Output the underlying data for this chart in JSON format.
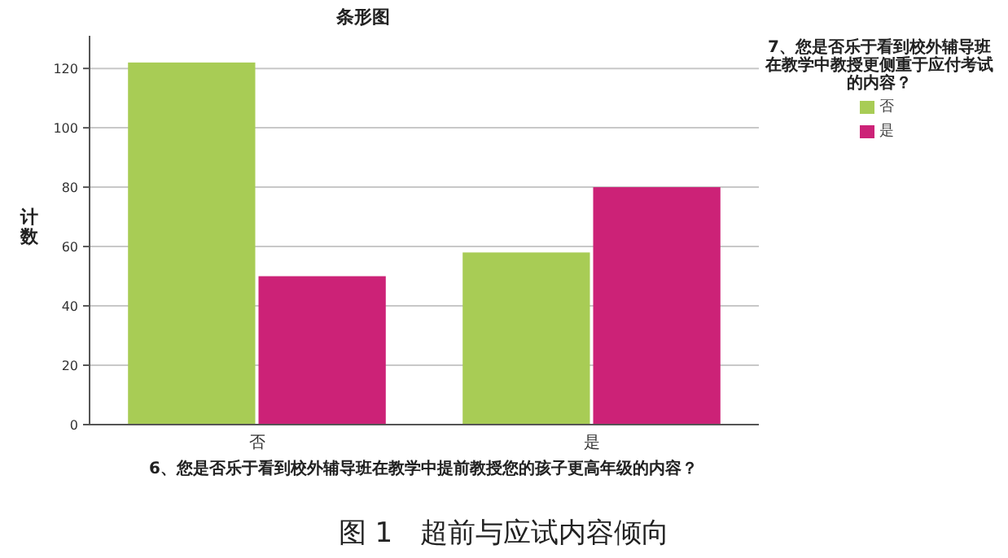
{
  "chart_data": {
    "type": "bar",
    "title": "条形图",
    "xlabel": "6、您是否乐于看到校外辅导班在教学中提前教授您的孩子更高年级的内容？",
    "ylabel": "计数",
    "legend_title": "7、您是否乐于看到校外辅导班在教学中教授更侧重于应付考试的内容？",
    "categories": [
      "否",
      "是"
    ],
    "series": [
      {
        "name": "否",
        "color": "#a8cc55",
        "values": [
          122,
          58
        ]
      },
      {
        "name": "是",
        "color": "#cc2277",
        "values": [
          50,
          80
        ]
      }
    ],
    "ylim": [
      0,
      131
    ],
    "yticks": [
      0,
      20,
      40,
      60,
      80,
      100,
      120
    ],
    "grid": "y",
    "legend": "top right",
    "annotations": [
      "图 1　超前与应试内容倾向"
    ]
  }
}
